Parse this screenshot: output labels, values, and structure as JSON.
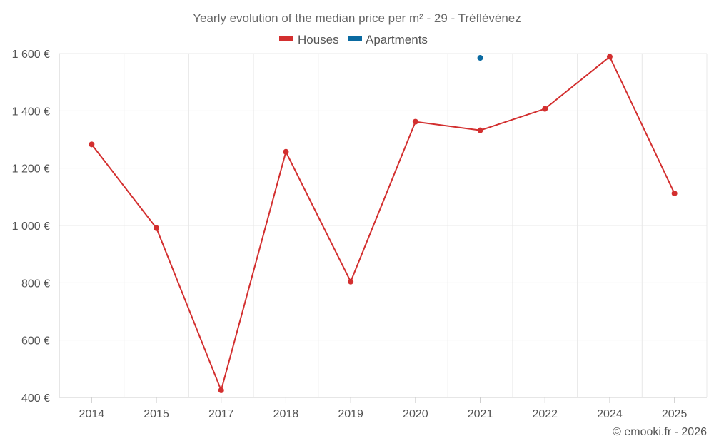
{
  "chart_data": {
    "type": "line",
    "title": "Yearly evolution of the median price per m² - 29 - Tréflévénez",
    "categories": [
      "2014",
      "2015",
      "2017",
      "2018",
      "2019",
      "2020",
      "2021",
      "2022",
      "2024",
      "2025"
    ],
    "series": [
      {
        "name": "Houses",
        "color": "#d32f2f",
        "values": [
          1283,
          991,
          425,
          1257,
          804,
          1362,
          1332,
          1407,
          1589,
          1112
        ]
      },
      {
        "name": "Apartments",
        "color": "#0a6aa1",
        "values": [
          null,
          null,
          null,
          null,
          null,
          null,
          1585,
          null,
          null,
          null
        ]
      }
    ],
    "y_ticks": [
      "1 600 €",
      "1 400 €",
      "1 200 €",
      "1 000 €",
      "800 €",
      "600 €",
      "400 €"
    ],
    "y_tick_values": [
      1600,
      1400,
      1200,
      1000,
      800,
      600,
      400
    ],
    "ylim": [
      400,
      1600
    ],
    "xlabel": "",
    "ylabel": "",
    "grid": true,
    "legend_position": "top-center"
  },
  "credit": "© emooki.fr - 2026"
}
